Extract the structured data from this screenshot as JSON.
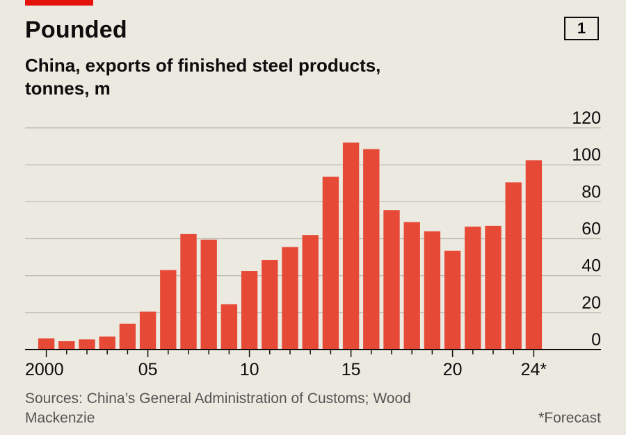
{
  "header": {
    "title": "Pounded",
    "chart_number": "1",
    "subtitle": "China, exports of finished steel products, tonnes, m"
  },
  "colors": {
    "bar": "#e64a36",
    "grid": "#b8b5ad",
    "axis": "#0d0d0d",
    "accent": "#e3120b"
  },
  "chart_data": {
    "type": "bar",
    "title": "Pounded",
    "subtitle": "China, exports of finished steel products, tonnes, m",
    "x": [
      2000,
      2001,
      2002,
      2003,
      2004,
      2005,
      2006,
      2007,
      2008,
      2009,
      2010,
      2011,
      2012,
      2013,
      2014,
      2015,
      2016,
      2017,
      2018,
      2019,
      2020,
      2021,
      2022,
      2023,
      2024
    ],
    "values": [
      6,
      4.5,
      5.5,
      7,
      14,
      20.5,
      43,
      62.5,
      59.5,
      24.5,
      42.5,
      48.5,
      55.5,
      62,
      93.5,
      112,
      108.5,
      75.5,
      69,
      64,
      53.5,
      66.5,
      67,
      90.5,
      102.5
    ],
    "forecast_years": [
      2024
    ],
    "xtick_values": [
      2000,
      2005,
      2010,
      2015,
      2020,
      2024
    ],
    "xtick_labels": [
      "2000",
      "05",
      "10",
      "15",
      "20",
      "24*"
    ],
    "yticks": [
      0,
      20,
      40,
      60,
      80,
      100,
      120
    ],
    "ylim": [
      0,
      120
    ],
    "xlabel": "",
    "ylabel": "",
    "grid": true
  },
  "footer": {
    "source": "Sources: China’s General Administration of Customs; Wood Mackenzie",
    "footnote": "*Forecast"
  }
}
